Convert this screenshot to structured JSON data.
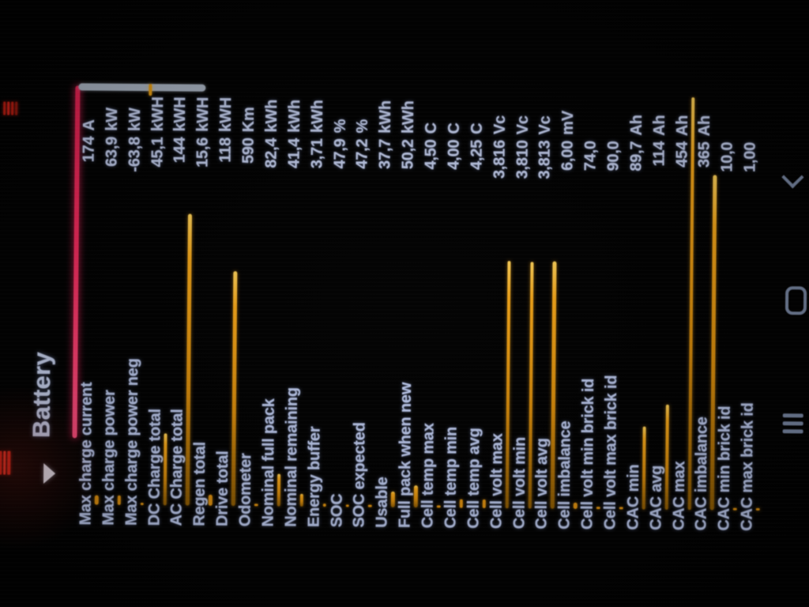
{
  "header": {
    "tab_title": "Battery"
  },
  "list": {
    "rows": [
      {
        "label": "Max charge current",
        "value": "174",
        "unit": "A",
        "bar": 12
      },
      {
        "label": "Max charge power",
        "value": "63,9",
        "unit": "kW",
        "bar": 12
      },
      {
        "label": "Max charge power neg",
        "value": "-63,8",
        "unit": "kW",
        "bar": 3
      },
      {
        "label": "DC Charge total",
        "value": "45,1",
        "unit": "kWH",
        "bar": 91
      },
      {
        "label": "AC Charge total",
        "value": "144",
        "unit": "kWH",
        "bar": 369
      },
      {
        "label": "Regen total",
        "value": "15,6",
        "unit": "kWH",
        "bar": 14
      },
      {
        "label": "Drive total",
        "value": "118",
        "unit": "kWH",
        "bar": 297
      },
      {
        "label": "Odometer",
        "value": "590",
        "unit": "Km",
        "bar": 3
      },
      {
        "label": "Nominal full pack",
        "value": "82,4",
        "unit": "kWh",
        "bar": 41
      },
      {
        "label": "Nominal remaining",
        "value": "41,4",
        "unit": "kWh",
        "bar": 16
      },
      {
        "label": "Energy buffer",
        "value": "3,71",
        "unit": "kWh",
        "bar": 4
      },
      {
        "label": "SOC",
        "value": "47,9",
        "unit": "%",
        "bar": 3
      },
      {
        "label": "SOC expected",
        "value": "47,2",
        "unit": "%",
        "bar": 3
      },
      {
        "label": "Usable",
        "value": "37,7",
        "unit": "kWh",
        "bar": 20
      },
      {
        "label": "Full pack when new",
        "value": "50,2",
        "unit": "kWh",
        "bar": 28
      },
      {
        "label": "Cell temp max",
        "value": "4,50",
        "unit": "C",
        "bar": 3
      },
      {
        "label": "Cell temp min",
        "value": "4,00",
        "unit": "C",
        "bar": 11
      },
      {
        "label": "Cell temp avg",
        "value": "4,25",
        "unit": "C",
        "bar": 11
      },
      {
        "label": "Cell volt max",
        "value": "3,816",
        "unit": "Vc",
        "bar": 313
      },
      {
        "label": "Cell volt min",
        "value": "3,810",
        "unit": "Vc",
        "bar": 312
      },
      {
        "label": "Cell volt avg",
        "value": "3,813",
        "unit": "Vc",
        "bar": 313
      },
      {
        "label": "Cell imbalance",
        "value": "6,00",
        "unit": "mV",
        "bar": 8
      },
      {
        "label": "Cell volt min brick id",
        "value": "74,0",
        "unit": "",
        "bar": 3
      },
      {
        "label": "Cell volt max brick id",
        "value": "90,0",
        "unit": "",
        "bar": 3
      },
      {
        "label": "CAC min",
        "value": "89,7",
        "unit": "Ah",
        "bar": 105
      },
      {
        "label": "CAC avg",
        "value": "114",
        "unit": "Ah",
        "bar": 133
      },
      {
        "label": "CAC max",
        "value": "454",
        "unit": "Ah",
        "bar": 522
      },
      {
        "label": "CAC imbalance",
        "value": "365",
        "unit": "Ah",
        "bar": 424
      },
      {
        "label": "CAC min brick id",
        "value": "10,0",
        "unit": "",
        "bar": 3
      },
      {
        "label": "CAC max brick id",
        "value": "1,00",
        "unit": "",
        "bar": 3
      }
    ]
  },
  "colors": {
    "accent_pink": "#ef2d5e",
    "bar_orange": "#f3a71f",
    "text": "#bcc8ea",
    "scrollbar": "#a9b3c1",
    "nav_icons": "#7b89a4",
    "glitch_red": "#cf2418"
  },
  "nav": {
    "buttons": [
      {
        "name": "recents"
      },
      {
        "name": "home"
      },
      {
        "name": "back"
      }
    ]
  }
}
